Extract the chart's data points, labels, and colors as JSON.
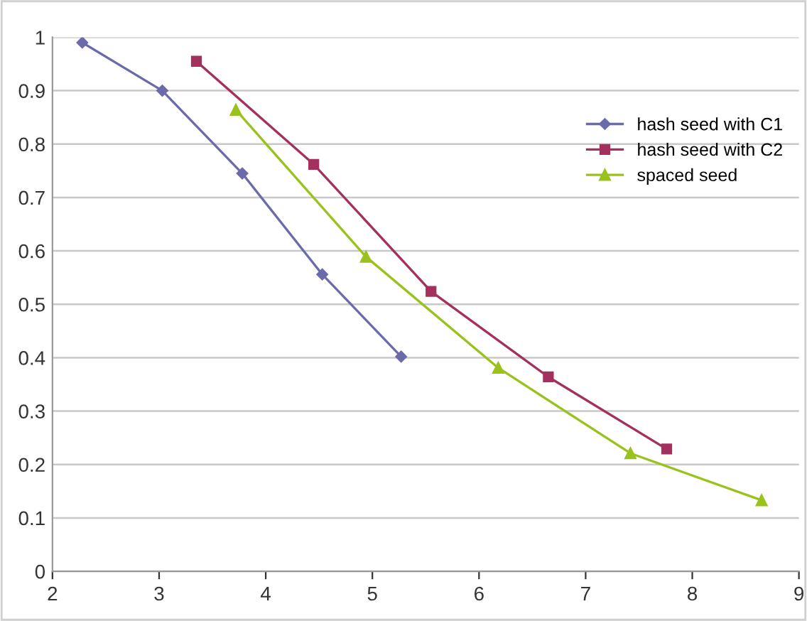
{
  "chart_data": {
    "type": "line",
    "series": [
      {
        "name": "hash seed with C1",
        "color": "#6b6bab",
        "marker": "diamond",
        "x": [
          2.28,
          3.03,
          3.78,
          4.53,
          5.27
        ],
        "values": [
          0.99,
          0.9,
          0.745,
          0.556,
          0.402
        ]
      },
      {
        "name": "hash seed with C2",
        "color": "#a3305e",
        "marker": "square",
        "x": [
          3.35,
          4.45,
          5.55,
          6.65,
          7.76
        ],
        "values": [
          0.955,
          0.762,
          0.524,
          0.364,
          0.229
        ]
      },
      {
        "name": "spaced seed",
        "color": "#99c31c",
        "marker": "triangle",
        "x": [
          3.72,
          4.94,
          6.18,
          7.42,
          8.65
        ],
        "values": [
          0.864,
          0.589,
          0.381,
          0.221,
          0.133
        ]
      }
    ],
    "xlim": [
      2,
      9
    ],
    "xticks": [
      2,
      3,
      4,
      5,
      6,
      7,
      8,
      9
    ],
    "ylim": [
      0,
      1
    ],
    "yticks": [
      0,
      0.1,
      0.2,
      0.3,
      0.4,
      0.5,
      0.6,
      0.7,
      0.8,
      0.9,
      1
    ],
    "grid": "y",
    "legend": "top right",
    "line_style": "solid"
  }
}
